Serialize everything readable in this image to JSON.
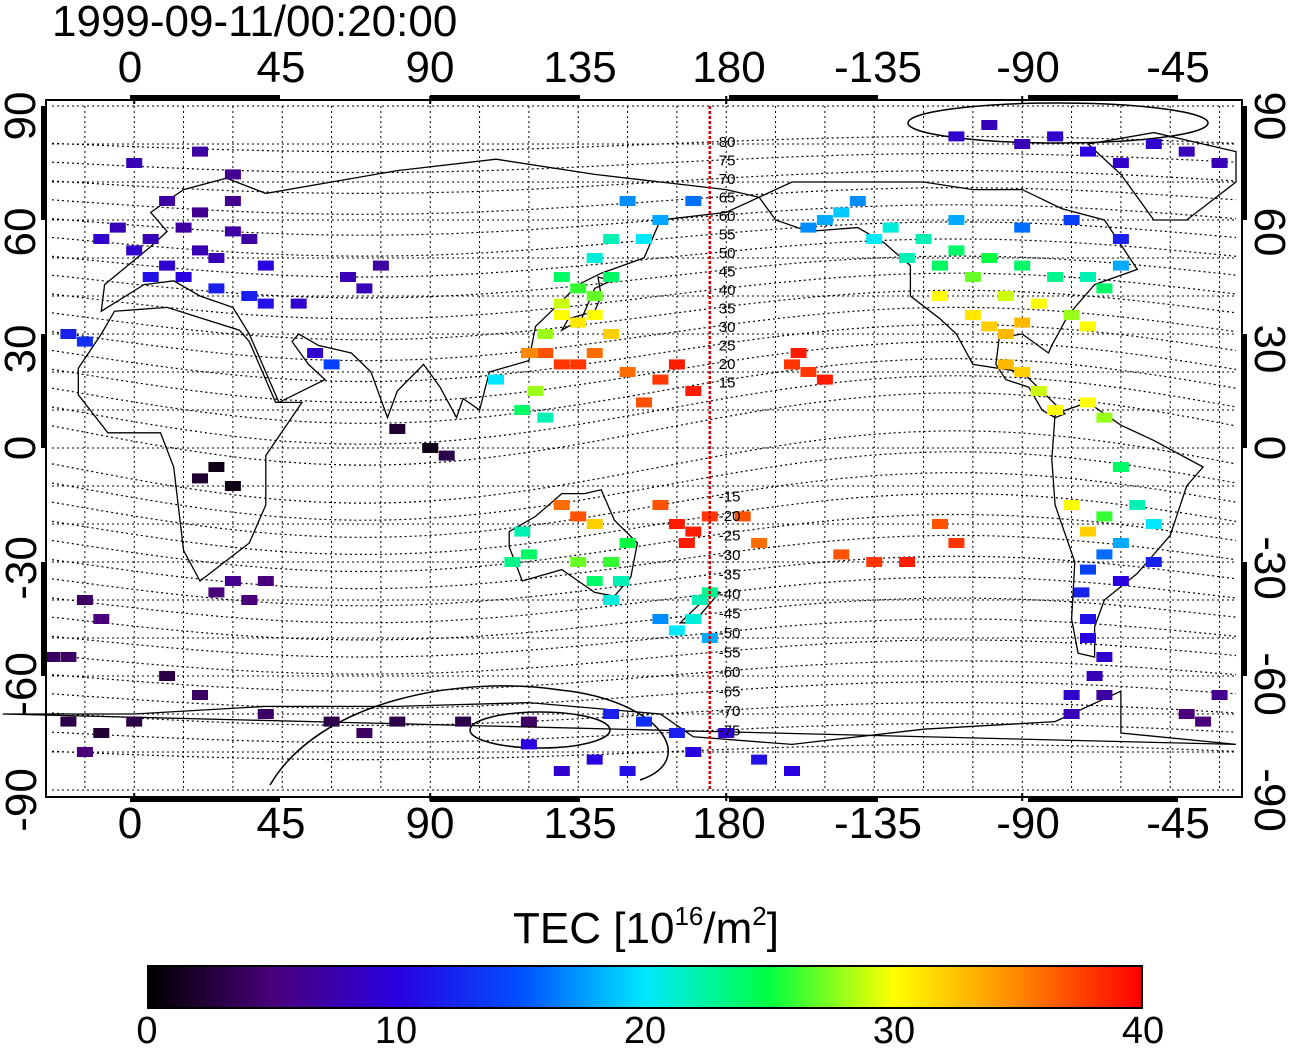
{
  "title": "1999-09-11/00:20:00",
  "axes": {
    "x_tick_labels": [
      "0",
      "45",
      "90",
      "135",
      "180",
      "-135",
      "-90",
      "-45"
    ],
    "y_tick_labels": [
      "90",
      "60",
      "30",
      "0",
      "-30",
      "-60",
      "-90"
    ],
    "lon_range": [
      -25,
      335
    ],
    "lat_range": [
      -90,
      90
    ],
    "grid": true
  },
  "terminator_longitude": 175,
  "terminator_color": "#dd0000",
  "contour_labels": [
    "80",
    "75",
    "70",
    "65",
    "60",
    "55",
    "50",
    "45",
    "40",
    "35",
    "30",
    "25",
    "20",
    "15",
    "-15",
    "-20",
    "-25",
    "-30",
    "-35",
    "-40",
    "-45",
    "-50",
    "-55",
    "-60",
    "-65",
    "-70",
    "-75"
  ],
  "colorbar": {
    "title_main": "TEC  [10",
    "title_exp1": "16",
    "title_mid": "/m",
    "title_exp2": "2",
    "title_end": "]",
    "tick_labels": [
      "0",
      "10",
      "20",
      "30",
      "40"
    ],
    "range": [
      0,
      40
    ],
    "colormap": [
      "#000000",
      "#4a007a",
      "#2a00e0",
      "#0050ff",
      "#00e8ff",
      "#00ff40",
      "#ffff00",
      "#ff8800",
      "#ff0000"
    ]
  },
  "chart_data": {
    "type": "heatmap",
    "title": "1999-09-11/00:20:00",
    "xlabel": "",
    "ylabel": "",
    "x_ticks": [
      0,
      45,
      90,
      135,
      180,
      -135,
      -90,
      -45
    ],
    "y_ticks": [
      90,
      60,
      30,
      0,
      -30,
      -60,
      -90
    ],
    "value_label": "TEC  [10^16/m^2]",
    "vrange": [
      0,
      40
    ],
    "points": [
      [
        15,
        58,
        7
      ],
      [
        5,
        55,
        8
      ],
      [
        20,
        52,
        8
      ],
      [
        30,
        57,
        7
      ],
      [
        10,
        48,
        9
      ],
      [
        25,
        50,
        8
      ],
      [
        35,
        55,
        7
      ],
      [
        0,
        52,
        9
      ],
      [
        15,
        45,
        10
      ],
      [
        5,
        45,
        11
      ],
      [
        40,
        48,
        10
      ],
      [
        20,
        62,
        6
      ],
      [
        10,
        65,
        7
      ],
      [
        30,
        65,
        6
      ],
      [
        -5,
        58,
        8
      ],
      [
        -10,
        55,
        9
      ],
      [
        25,
        42,
        12
      ],
      [
        35,
        40,
        12
      ],
      [
        40,
        38,
        11
      ],
      [
        50,
        38,
        9
      ],
      [
        0,
        75,
        8
      ],
      [
        20,
        78,
        7
      ],
      [
        30,
        72,
        6
      ],
      [
        70,
        42,
        8
      ],
      [
        75,
        48,
        7
      ],
      [
        65,
        45,
        8
      ],
      [
        55,
        25,
        9
      ],
      [
        60,
        22,
        14
      ],
      [
        -20,
        30,
        12
      ],
      [
        -15,
        28,
        13
      ],
      [
        130,
        35,
        30
      ],
      [
        135,
        33,
        31
      ],
      [
        140,
        35,
        30
      ],
      [
        125,
        30,
        28
      ],
      [
        140,
        40,
        27
      ],
      [
        130,
        38,
        29
      ],
      [
        120,
        25,
        35
      ],
      [
        125,
        25,
        37
      ],
      [
        130,
        22,
        38
      ],
      [
        145,
        30,
        32
      ],
      [
        140,
        25,
        36
      ],
      [
        135,
        42,
        26
      ],
      [
        145,
        45,
        24
      ],
      [
        145,
        55,
        22
      ],
      [
        160,
        60,
        18
      ],
      [
        155,
        55,
        20
      ],
      [
        170,
        65,
        16
      ],
      [
        150,
        65,
        17
      ],
      [
        140,
        50,
        21
      ],
      [
        130,
        45,
        24
      ],
      [
        165,
        22,
        39
      ],
      [
        170,
        15,
        39
      ],
      [
        155,
        12,
        37
      ],
      [
        160,
        18,
        38
      ],
      [
        150,
        20,
        36
      ],
      [
        135,
        22,
        38
      ],
      [
        122,
        15,
        28
      ],
      [
        118,
        10,
        24
      ],
      [
        125,
        8,
        22
      ],
      [
        110,
        18,
        20
      ],
      [
        165,
        -20,
        39
      ],
      [
        170,
        -22,
        39
      ],
      [
        168,
        -25,
        39
      ],
      [
        175,
        -18,
        38
      ],
      [
        160,
        -15,
        37
      ],
      [
        185,
        -18,
        37
      ],
      [
        190,
        -25,
        36
      ],
      [
        200,
        22,
        38
      ],
      [
        205,
        20,
        38
      ],
      [
        210,
        18,
        39
      ],
      [
        202,
        25,
        39
      ],
      [
        150,
        -25,
        25
      ],
      [
        145,
        -30,
        26
      ],
      [
        140,
        -35,
        24
      ],
      [
        135,
        -30,
        27
      ],
      [
        120,
        -28,
        24
      ],
      [
        115,
        -30,
        23
      ],
      [
        118,
        -22,
        22
      ],
      [
        130,
        -15,
        36
      ],
      [
        135,
        -18,
        37
      ],
      [
        140,
        -20,
        32
      ],
      [
        148,
        -35,
        22
      ],
      [
        145,
        -40,
        21
      ],
      [
        172,
        -40,
        22
      ],
      [
        175,
        -38,
        23
      ],
      [
        170,
        -45,
        21
      ],
      [
        165,
        -48,
        20
      ],
      [
        160,
        -45,
        17
      ],
      [
        175,
        -50,
        18
      ],
      [
        210,
        60,
        18
      ],
      [
        220,
        65,
        17
      ],
      [
        215,
        62,
        19
      ],
      [
        205,
        58,
        17
      ],
      [
        230,
        58,
        21
      ],
      [
        240,
        55,
        22
      ],
      [
        250,
        52,
        24
      ],
      [
        260,
        50,
        25
      ],
      [
        270,
        48,
        24
      ],
      [
        280,
        45,
        23
      ],
      [
        290,
        45,
        22
      ],
      [
        295,
        42,
        24
      ],
      [
        300,
        48,
        18
      ],
      [
        255,
        45,
        27
      ],
      [
        245,
        40,
        30
      ],
      [
        265,
        40,
        29
      ],
      [
        275,
        38,
        30
      ],
      [
        285,
        35,
        28
      ],
      [
        290,
        32,
        30
      ],
      [
        255,
        35,
        31
      ],
      [
        260,
        32,
        32
      ],
      [
        265,
        30,
        33
      ],
      [
        270,
        33,
        33
      ],
      [
        245,
        48,
        24
      ],
      [
        235,
        50,
        22
      ],
      [
        225,
        55,
        20
      ],
      [
        250,
        60,
        18
      ],
      [
        270,
        58,
        16
      ],
      [
        285,
        60,
        14
      ],
      [
        300,
        55,
        12
      ],
      [
        265,
        22,
        33
      ],
      [
        270,
        20,
        32
      ],
      [
        275,
        15,
        29
      ],
      [
        280,
        10,
        30
      ],
      [
        290,
        12,
        30
      ],
      [
        295,
        8,
        28
      ],
      [
        300,
        -5,
        24
      ],
      [
        305,
        -15,
        22
      ],
      [
        310,
        -20,
        20
      ],
      [
        300,
        -25,
        18
      ],
      [
        295,
        -28,
        16
      ],
      [
        290,
        -32,
        14
      ],
      [
        288,
        -38,
        12
      ],
      [
        290,
        -45,
        11
      ],
      [
        290,
        -50,
        10
      ],
      [
        295,
        -55,
        9
      ],
      [
        292,
        -60,
        8
      ],
      [
        285,
        -65,
        9
      ],
      [
        285,
        -70,
        8
      ],
      [
        295,
        -65,
        7
      ],
      [
        290,
        -22,
        32
      ],
      [
        285,
        -15,
        30
      ],
      [
        295,
        -18,
        26
      ],
      [
        310,
        -30,
        12
      ],
      [
        300,
        -35,
        10
      ],
      [
        245,
        -20,
        37
      ],
      [
        250,
        -25,
        38
      ],
      [
        235,
        -30,
        39
      ],
      [
        225,
        -30,
        38
      ],
      [
        215,
        -28,
        37
      ],
      [
        40,
        -35,
        5
      ],
      [
        35,
        -40,
        5
      ],
      [
        30,
        -35,
        6
      ],
      [
        25,
        -38,
        5
      ],
      [
        -15,
        -40,
        4
      ],
      [
        -10,
        -45,
        5
      ],
      [
        30,
        -10,
        1
      ],
      [
        25,
        -5,
        1
      ],
      [
        20,
        -8,
        2
      ],
      [
        80,
        5,
        2
      ],
      [
        90,
        0,
        1
      ],
      [
        95,
        -2,
        3
      ],
      [
        -25,
        -55,
        4
      ],
      [
        -20,
        -55,
        4
      ],
      [
        10,
        -60,
        3
      ],
      [
        20,
        -65,
        4
      ],
      [
        60,
        -72,
        3
      ],
      [
        70,
        -75,
        4
      ],
      [
        80,
        -72,
        3
      ],
      [
        100,
        -72,
        3
      ],
      [
        120,
        -72,
        4
      ],
      [
        -20,
        -72,
        3
      ],
      [
        -10,
        -75,
        2
      ],
      [
        0,
        -72,
        3
      ],
      [
        40,
        -70,
        4
      ],
      [
        -15,
        -80,
        5
      ],
      [
        130,
        -85,
        9
      ],
      [
        140,
        -82,
        10
      ],
      [
        150,
        -85,
        11
      ],
      [
        120,
        -78,
        10
      ],
      [
        170,
        -80,
        10
      ],
      [
        180,
        -75,
        9
      ],
      [
        190,
        -82,
        11
      ],
      [
        200,
        -85,
        10
      ],
      [
        165,
        -75,
        12
      ],
      [
        155,
        -72,
        13
      ],
      [
        145,
        -70,
        12
      ],
      [
        250,
        82,
        9
      ],
      [
        260,
        85,
        8
      ],
      [
        270,
        80,
        8
      ],
      [
        280,
        82,
        9
      ],
      [
        290,
        78,
        10
      ],
      [
        300,
        75,
        9
      ],
      [
        310,
        80,
        9
      ],
      [
        320,
        78,
        8
      ],
      [
        330,
        75,
        8
      ],
      [
        320,
        -70,
        5
      ],
      [
        325,
        -72,
        5
      ],
      [
        330,
        -65,
        6
      ]
    ]
  }
}
